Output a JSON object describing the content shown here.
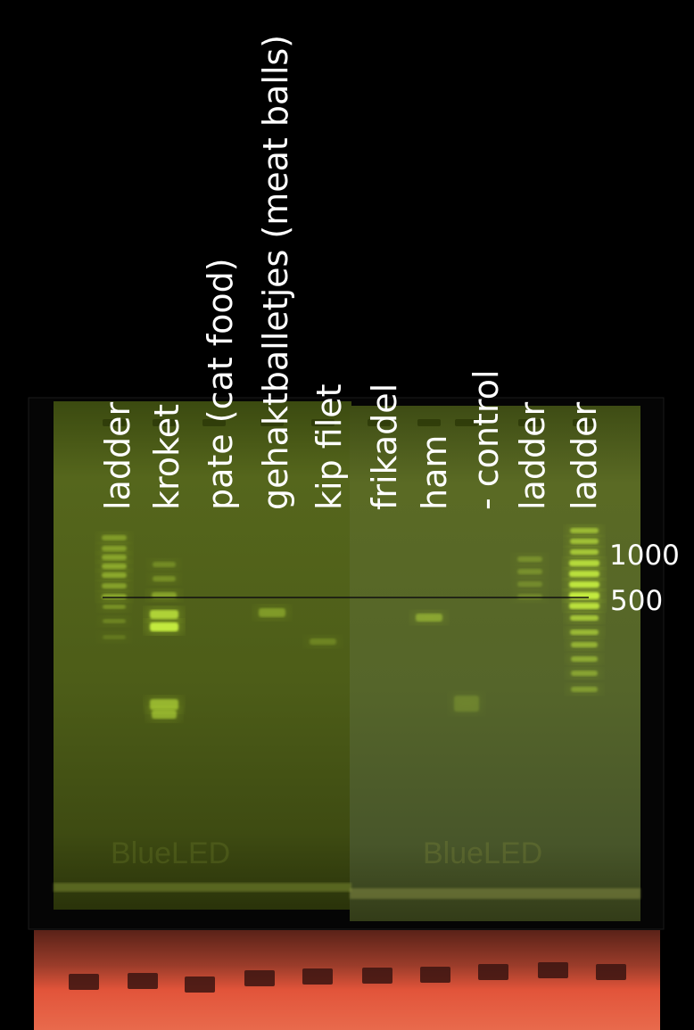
{
  "lanes": [
    {
      "label": "ladder"
    },
    {
      "label": "kroket"
    },
    {
      "label": "pate (cat food)"
    },
    {
      "label": "gehaktballetjes (meat balls)"
    },
    {
      "label": "kip filet"
    },
    {
      "label": "frikadel"
    },
    {
      "label": "ham"
    },
    {
      "label": "- control"
    },
    {
      "label": "ladder"
    },
    {
      "label": "ladder"
    }
  ],
  "size_markers": {
    "upper": "1000",
    "lower": "500"
  },
  "colors": {
    "background": "#000000",
    "gel": "#4f5f1c",
    "band": "#c8f040",
    "loading_tray": "#d8543a",
    "label_text": "#ffffff"
  },
  "gel_watermark": "BlueLED"
}
